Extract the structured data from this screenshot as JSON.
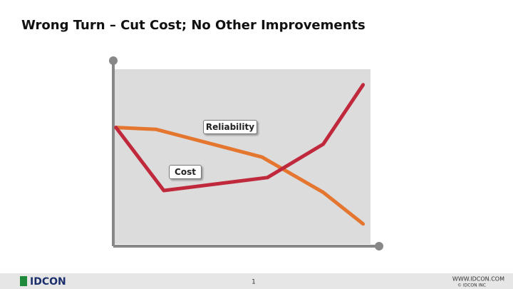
{
  "chart_data": {
    "type": "line",
    "title": "Wrong Turn – Cut Cost; No Other Improvements",
    "xlim": [
      0,
      100
    ],
    "ylim": [
      0,
      100
    ],
    "series": [
      {
        "name": "Reliability",
        "color": "#e4762f",
        "x": [
          1,
          16,
          56,
          79,
          94
        ],
        "values": [
          64,
          63,
          48,
          29,
          12
        ]
      },
      {
        "name": "Cost",
        "color": "#c0283c",
        "x": [
          1,
          19,
          58,
          79,
          94
        ],
        "values": [
          64,
          30,
          37,
          55,
          87
        ]
      }
    ]
  },
  "footer": {
    "logo": "IDCON",
    "page": "1",
    "website": "WWW.IDCON.COM",
    "copyright": "© IDCON INC"
  }
}
